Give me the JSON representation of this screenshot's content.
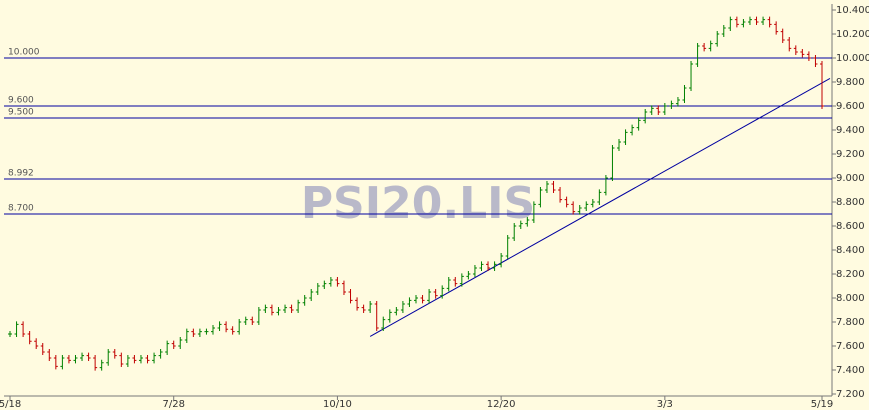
{
  "chart_data": {
    "type": "price-bars",
    "watermark": "PSI20.LIS",
    "up_color": "#008000",
    "down_color": "#c00000",
    "level_color": "#0000a0",
    "categories": [
      "5/18",
      null,
      null,
      null,
      null,
      null,
      null,
      null,
      null,
      null,
      null,
      null,
      null,
      null,
      null,
      null,
      null,
      null,
      null,
      null,
      null,
      null,
      null,
      null,
      null,
      "7/28",
      null,
      null,
      null,
      null,
      null,
      null,
      null,
      null,
      null,
      null,
      null,
      null,
      null,
      null,
      null,
      null,
      null,
      null,
      null,
      null,
      null,
      null,
      null,
      null,
      "10/10",
      null,
      null,
      null,
      null,
      null,
      null,
      null,
      null,
      null,
      null,
      null,
      null,
      null,
      null,
      null,
      null,
      null,
      null,
      null,
      null,
      null,
      null,
      null,
      null,
      "12/20",
      null,
      null,
      null,
      null,
      null,
      null,
      null,
      null,
      null,
      null,
      null,
      null,
      null,
      null,
      null,
      null,
      null,
      null,
      null,
      null,
      null,
      null,
      null,
      null,
      "3/3",
      null,
      null,
      null,
      null,
      null,
      null,
      null,
      null,
      null,
      null,
      null,
      null,
      null,
      null,
      null,
      null,
      null,
      null,
      null,
      null,
      null,
      null,
      null,
      "5/19"
    ],
    "values": [
      7.7,
      7.78,
      7.7,
      7.64,
      7.6,
      7.55,
      7.5,
      7.43,
      7.5,
      7.48,
      7.5,
      7.52,
      7.5,
      7.42,
      7.46,
      7.55,
      7.52,
      7.45,
      7.5,
      7.48,
      7.5,
      7.48,
      7.52,
      7.55,
      7.62,
      7.6,
      7.65,
      7.72,
      7.7,
      7.72,
      7.72,
      7.75,
      7.78,
      7.74,
      7.72,
      7.8,
      7.82,
      7.8,
      7.9,
      7.92,
      7.88,
      7.9,
      7.92,
      7.9,
      7.96,
      8.0,
      8.05,
      8.1,
      8.12,
      8.15,
      8.12,
      8.05,
      7.98,
      7.92,
      7.9,
      7.95,
      7.75,
      7.82,
      7.88,
      7.9,
      7.95,
      7.98,
      8.0,
      7.98,
      8.05,
      8.02,
      8.08,
      8.15,
      8.12,
      8.18,
      8.2,
      8.25,
      8.28,
      8.25,
      8.28,
      8.35,
      8.5,
      8.6,
      8.62,
      8.65,
      8.78,
      8.9,
      8.95,
      8.9,
      8.82,
      8.78,
      8.72,
      8.75,
      8.78,
      8.8,
      8.88,
      9.0,
      9.25,
      9.3,
      9.38,
      9.42,
      9.48,
      9.55,
      9.58,
      9.55,
      9.6,
      9.62,
      9.65,
      9.75,
      9.95,
      10.1,
      10.08,
      10.12,
      10.2,
      10.25,
      10.32,
      10.28,
      10.3,
      10.32,
      10.3,
      10.32,
      10.28,
      10.22,
      10.15,
      10.08,
      10.05,
      10.03,
      10.0,
      9.95,
      9.6
    ],
    "ylim": [
      7.2,
      10.4
    ],
    "yticks": [
      {
        "value": 7.2,
        "label": "7.200"
      },
      {
        "value": 7.4,
        "label": "7.400"
      },
      {
        "value": 7.6,
        "label": "7.600"
      },
      {
        "value": 7.8,
        "label": "7.800"
      },
      {
        "value": 8.0,
        "label": "8.000"
      },
      {
        "value": 8.2,
        "label": "8.200"
      },
      {
        "value": 8.4,
        "label": "8.400"
      },
      {
        "value": 8.6,
        "label": "8.600"
      },
      {
        "value": 8.8,
        "label": "8.800"
      },
      {
        "value": 9.0,
        "label": "9.000"
      },
      {
        "value": 9.2,
        "label": "9.200"
      },
      {
        "value": 9.4,
        "label": "9.400"
      },
      {
        "value": 9.6,
        "label": "9.600"
      },
      {
        "value": 9.8,
        "label": "9.800"
      },
      {
        "value": 10.0,
        "label": "10.000"
      },
      {
        "value": 10.2,
        "label": "10.200"
      },
      {
        "value": 10.4,
        "label": "10.400"
      }
    ],
    "levels": [
      {
        "value": 10.0,
        "label": "10.000"
      },
      {
        "value": 9.6,
        "label": "9.600"
      },
      {
        "value": 9.5,
        "label": "9.500"
      },
      {
        "value": 8.992,
        "label": "8.992"
      },
      {
        "value": 8.7,
        "label": "8.700"
      }
    ],
    "trendline": {
      "start": 7.68,
      "end": 9.83
    }
  }
}
